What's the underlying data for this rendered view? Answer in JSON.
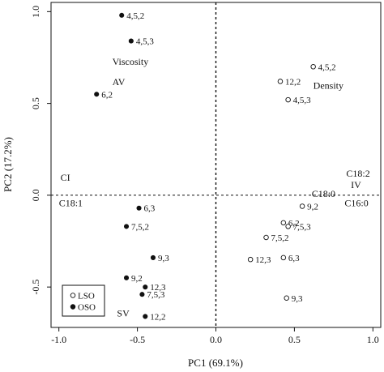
{
  "chart_data": {
    "type": "scatter",
    "xlabel": "PC1 (69.1%)",
    "ylabel": "PC2 (17.2%)",
    "xlim": [
      -1.05,
      1.05
    ],
    "ylim": [
      -0.72,
      1.05
    ],
    "x_ticks": [
      {
        "value": -1.0,
        "label": "-1.0"
      },
      {
        "value": -0.5,
        "label": "-0.5"
      },
      {
        "value": 0.0,
        "label": "0.0"
      },
      {
        "value": 0.5,
        "label": "0.5"
      },
      {
        "value": 1.0,
        "label": "1.0"
      }
    ],
    "y_ticks": [
      {
        "value": -0.5,
        "label": "-0.5"
      },
      {
        "value": 0.0,
        "label": "0.0"
      },
      {
        "value": 0.5,
        "label": "0.5"
      },
      {
        "value": 1.0,
        "label": "1.0"
      }
    ],
    "reference_lines": {
      "x": 0,
      "y": 0,
      "style": "dashed"
    },
    "series": [
      {
        "name": "LSO",
        "marker": "open-circle",
        "points": [
          {
            "x": 0.62,
            "y": 0.7,
            "label": "4,5,2"
          },
          {
            "x": 0.41,
            "y": 0.62,
            "label": "12,2"
          },
          {
            "x": 0.46,
            "y": 0.52,
            "label": "4,5,3"
          },
          {
            "x": 0.55,
            "y": -0.06,
            "label": "9,2"
          },
          {
            "x": 0.43,
            "y": -0.15,
            "label": "6,2"
          },
          {
            "x": 0.46,
            "y": -0.17,
            "label": "7,5,3"
          },
          {
            "x": 0.32,
            "y": -0.23,
            "label": "7,5,2"
          },
          {
            "x": 0.22,
            "y": -0.35,
            "label": "12,3"
          },
          {
            "x": 0.43,
            "y": -0.34,
            "label": "6,3"
          },
          {
            "x": 0.45,
            "y": -0.56,
            "label": "9,3"
          }
        ]
      },
      {
        "name": "OSO",
        "marker": "filled-circle",
        "points": [
          {
            "x": -0.6,
            "y": 0.98,
            "label": "4,5,2"
          },
          {
            "x": -0.54,
            "y": 0.84,
            "label": "4,5,3"
          },
          {
            "x": -0.76,
            "y": 0.55,
            "label": "6,2"
          },
          {
            "x": -0.49,
            "y": -0.07,
            "label": "6,3"
          },
          {
            "x": -0.57,
            "y": -0.17,
            "label": "7,5,2"
          },
          {
            "x": -0.4,
            "y": -0.34,
            "label": "9,3"
          },
          {
            "x": -0.57,
            "y": -0.45,
            "label": "9,2"
          },
          {
            "x": -0.45,
            "y": -0.5,
            "label": "12,3"
          },
          {
            "x": -0.47,
            "y": -0.54,
            "label": "7,5,3"
          },
          {
            "x": -0.45,
            "y": -0.66,
            "label": "12,2"
          }
        ]
      }
    ],
    "variable_labels": [
      {
        "text": "Viscosity",
        "x": -0.66,
        "y": 0.71
      },
      {
        "text": "AV",
        "x": -0.66,
        "y": 0.6
      },
      {
        "text": "Density",
        "x": 0.62,
        "y": 0.58
      },
      {
        "text": "CI",
        "x": -0.99,
        "y": 0.08
      },
      {
        "text": "C18:1",
        "x": -1.0,
        "y": -0.06
      },
      {
        "text": "C18:2",
        "x": 0.83,
        "y": 0.1
      },
      {
        "text": "IV",
        "x": 0.86,
        "y": 0.04
      },
      {
        "text": "C18:0",
        "x": 0.61,
        "y": -0.01
      },
      {
        "text": "C16:0",
        "x": 0.82,
        "y": -0.06
      },
      {
        "text": "SV",
        "x": -0.63,
        "y": -0.66
      }
    ],
    "legend": {
      "placement": "bottom-left",
      "entries": [
        {
          "label": "LSO",
          "marker": "open-circle"
        },
        {
          "label": "OSO",
          "marker": "filled-circle"
        }
      ]
    }
  }
}
